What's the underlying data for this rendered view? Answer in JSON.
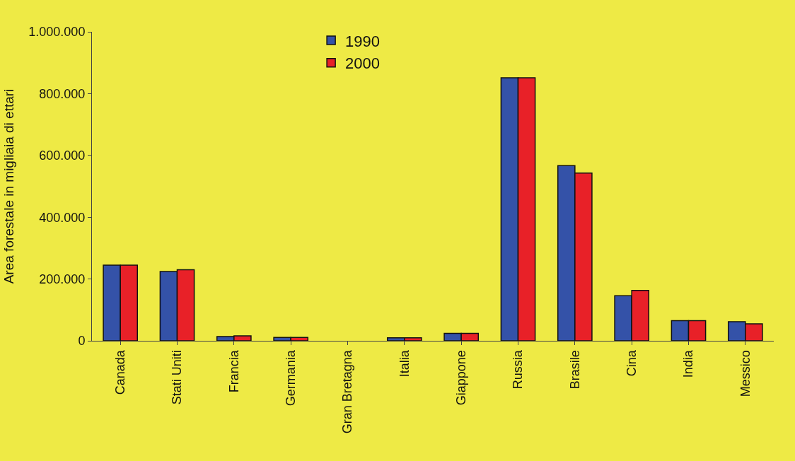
{
  "chart_data": {
    "type": "bar",
    "ylabel": "Area forestale in migliaia di ettari",
    "categories": [
      "Canada",
      "Stati Uniti",
      "Francia",
      "Germania",
      "Gran Bretagna",
      "Italia",
      "Giappone",
      "Russia",
      "Brasile",
      "Cina",
      "India",
      "Messico"
    ],
    "series": [
      {
        "name": "1990",
        "color": "#3452a8",
        "values": [
          245000,
          224000,
          14000,
          11000,
          null,
          10000,
          24000,
          851000,
          567000,
          146000,
          65000,
          62000
        ]
      },
      {
        "name": "2000",
        "color": "#e82128",
        "values": [
          245000,
          230000,
          16000,
          11000,
          null,
          10000,
          24000,
          851000,
          543000,
          163000,
          65000,
          55000
        ]
      }
    ],
    "ylim": [
      0,
      1000000
    ],
    "yticks": [
      {
        "value": 0,
        "label": "0"
      },
      {
        "value": 200000,
        "label": "200.000"
      },
      {
        "value": 400000,
        "label": "400.000"
      },
      {
        "value": 600000,
        "label": "600.000"
      },
      {
        "value": 800000,
        "label": "800.000"
      },
      {
        "value": 1000000,
        "label": "1.000.000"
      }
    ],
    "legend": "top",
    "grid": false
  }
}
